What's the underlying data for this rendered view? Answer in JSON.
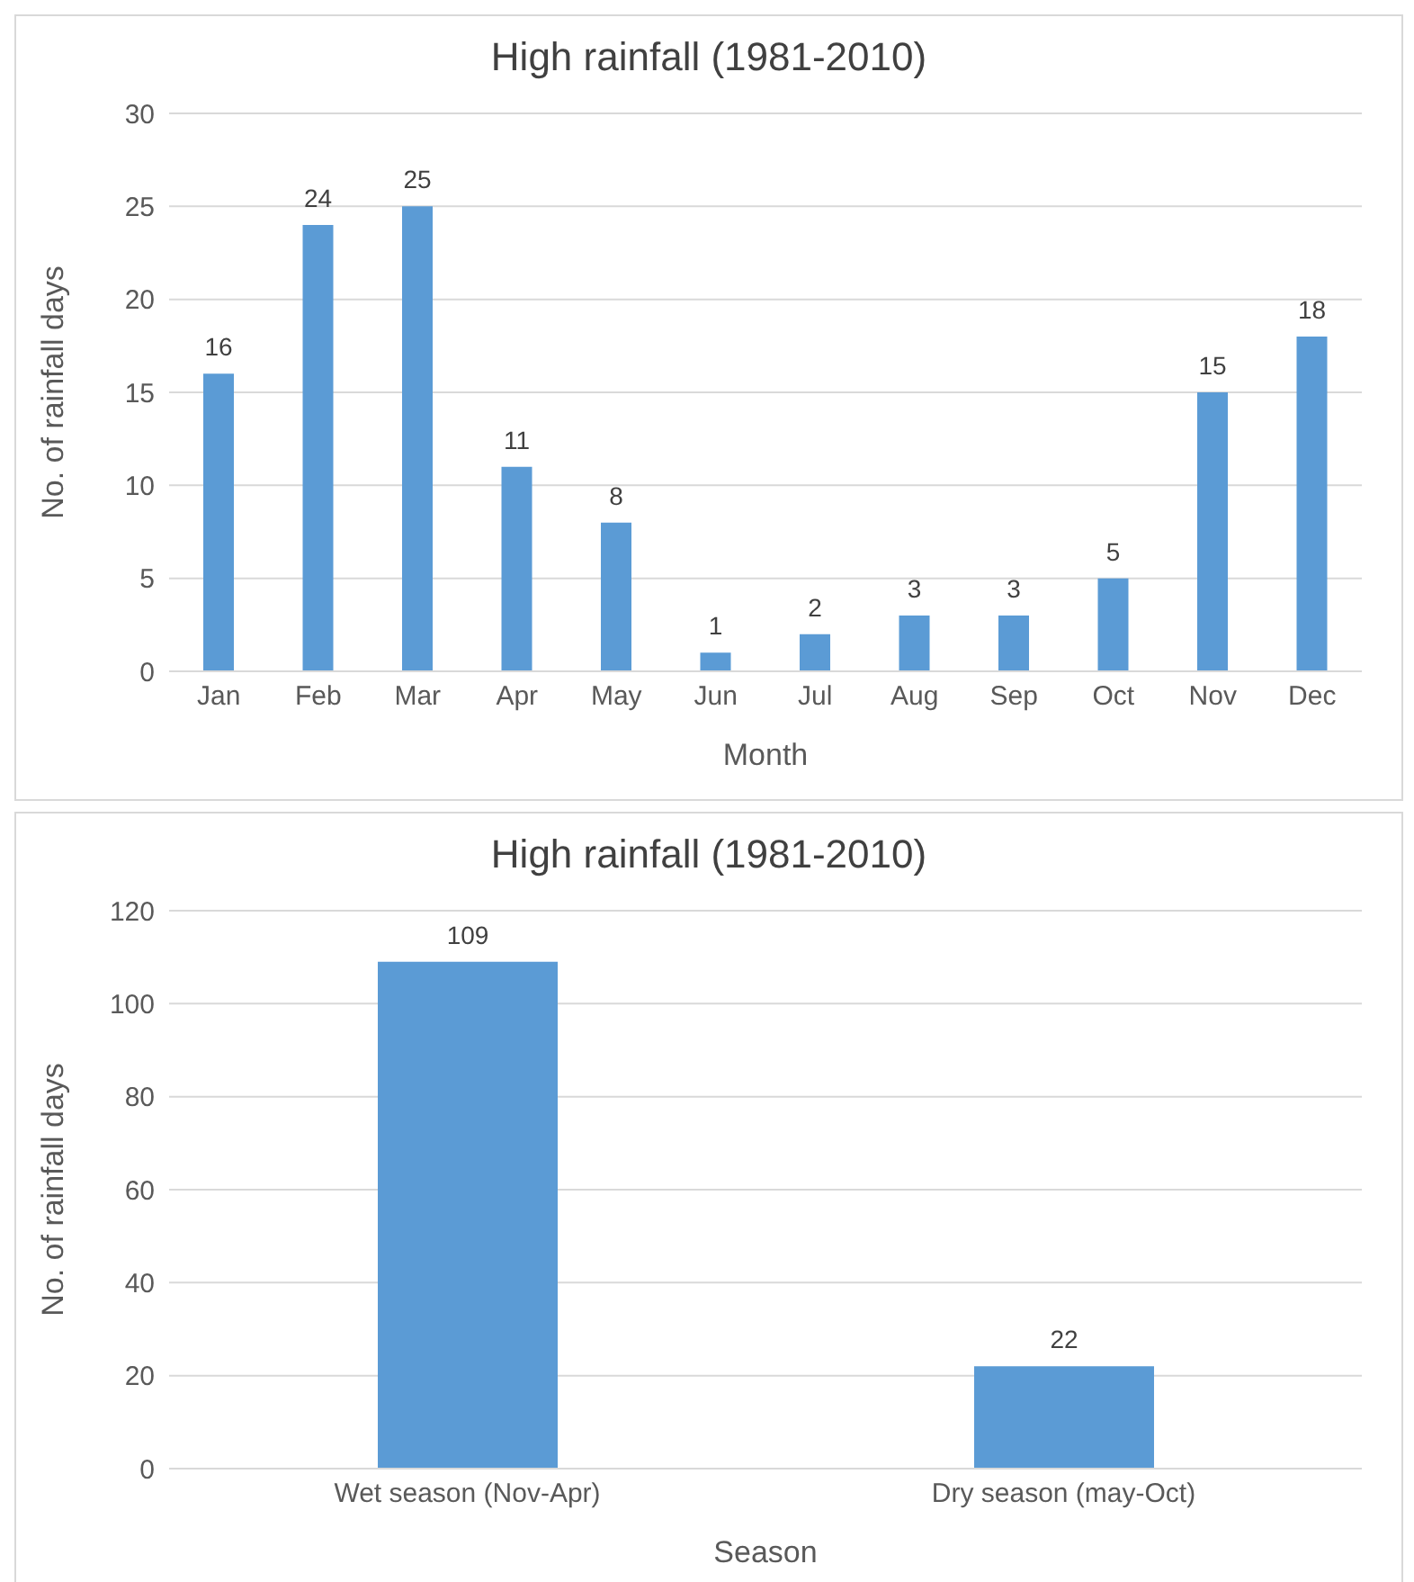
{
  "chart_data": [
    {
      "type": "bar",
      "title": "High rainfall (1981-2010)",
      "xlabel": "Month",
      "ylabel": "No. of rainfall days",
      "categories": [
        "Jan",
        "Feb",
        "Mar",
        "Apr",
        "May",
        "Jun",
        "Jul",
        "Aug",
        "Sep",
        "Oct",
        "Nov",
        "Dec"
      ],
      "values": [
        16,
        24,
        25,
        11,
        8,
        1,
        2,
        3,
        3,
        5,
        15,
        18
      ],
      "color": "#5b9bd5",
      "ylim": [
        0,
        30
      ],
      "yticks": [
        0,
        5,
        10,
        15,
        20,
        25,
        30
      ],
      "grid": "y",
      "data_labels": true
    },
    {
      "type": "bar",
      "title": "High rainfall (1981-2010)",
      "xlabel": "Season",
      "ylabel": "No. of rainfall days",
      "categories": [
        "Wet season (Nov-Apr)",
        "Dry season (may-Oct)"
      ],
      "values": [
        109,
        22
      ],
      "color": "#5b9bd5",
      "ylim": [
        0,
        120
      ],
      "yticks": [
        0,
        20,
        40,
        60,
        80,
        100,
        120
      ],
      "grid": "y",
      "data_labels": true
    }
  ]
}
